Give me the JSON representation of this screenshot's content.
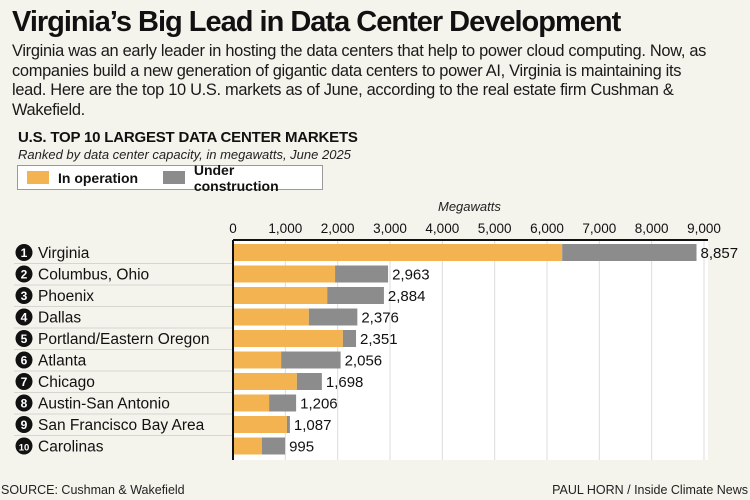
{
  "header": {
    "title": "Virginia’s Big Lead in Data Center Development",
    "intro": "Virginia was an early leader in hosting the data centers that help to power cloud computing. Now, as companies build a new generation of gigantic data centers to power AI, Virginia is maintaining its lead. Here are the top 10 U.S. markets as of June, according to the real estate firm Cushman & Wakefield."
  },
  "footer": {
    "source": "SOURCE: Cushman & Wakefield",
    "credit": "PAUL HORN / Inside Climate News"
  },
  "colors": {
    "in_operation": "#f2b350",
    "under_construction": "#8c8c8c",
    "plot_bg": "#ffffff",
    "gridline": "#dcdcdc",
    "row_divider": "#d6d6d0",
    "badge": "#111111"
  },
  "chart_data": {
    "type": "bar",
    "orientation": "horizontal",
    "stacked": true,
    "title": "U.S. TOP 10 LARGEST DATA CENTER MARKETS",
    "subtitle": "Ranked by data center capacity, in megawatts, June 2025",
    "xlabel": "Megawatts",
    "ylabel": "",
    "xlim": [
      0,
      9000
    ],
    "xticks": [
      0,
      1000,
      2000,
      3000,
      4000,
      5000,
      6000,
      7000,
      8000,
      9000
    ],
    "xtick_labels": [
      "0",
      "1,000",
      "2,000",
      "3,000",
      "4,000",
      "5,000",
      "6,000",
      "7,000",
      "8,000",
      "9,000"
    ],
    "grid": true,
    "legend": {
      "placement": "top-left",
      "entries": [
        "In operation",
        "Under construction"
      ]
    },
    "categories": [
      "Virginia",
      "Columbus, Ohio",
      "Phoenix",
      "Dallas",
      "Portland/Eastern Oregon",
      "Atlanta",
      "Chicago",
      "Austin-San Antonio",
      "San Francisco Bay Area",
      "Carolinas"
    ],
    "ranks": [
      "1",
      "2",
      "3",
      "4",
      "5",
      "6",
      "7",
      "8",
      "9",
      "10"
    ],
    "totals": [
      8857,
      2963,
      2884,
      2376,
      2351,
      2056,
      1698,
      1206,
      1087,
      995
    ],
    "total_labels": [
      "8,857",
      "2,963",
      "2,884",
      "2,376",
      "2,351",
      "2,056",
      "1,698",
      "1,206",
      "1,087",
      "995"
    ],
    "series": [
      {
        "name": "In operation",
        "values": [
          6290,
          1950,
          1800,
          1450,
          2100,
          920,
          1220,
          690,
          1030,
          550
        ]
      },
      {
        "name": "Under construction",
        "values": [
          2567,
          1013,
          1084,
          926,
          251,
          1136,
          478,
          516,
          57,
          445
        ]
      }
    ]
  }
}
